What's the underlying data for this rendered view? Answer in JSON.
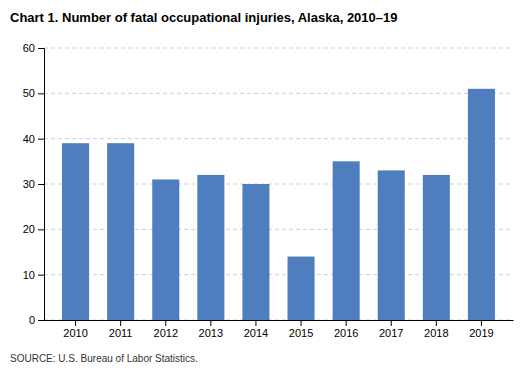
{
  "chart_data": {
    "type": "bar",
    "title": "Chart 1. Number of fatal occupational injuries, Alaska, 2010–19",
    "categories": [
      "2010",
      "2011",
      "2012",
      "2013",
      "2014",
      "2015",
      "2016",
      "2017",
      "2018",
      "2019"
    ],
    "values": [
      39,
      39,
      31,
      32,
      30,
      14,
      35,
      33,
      32,
      51
    ],
    "color": "#4f7ebe",
    "ylim": [
      0,
      60
    ],
    "yticks": [
      0,
      10,
      20,
      30,
      40,
      50,
      60
    ],
    "grid": true,
    "annotations": [
      "SOURCE: U.S. Bureau of Labor Statistics."
    ]
  }
}
